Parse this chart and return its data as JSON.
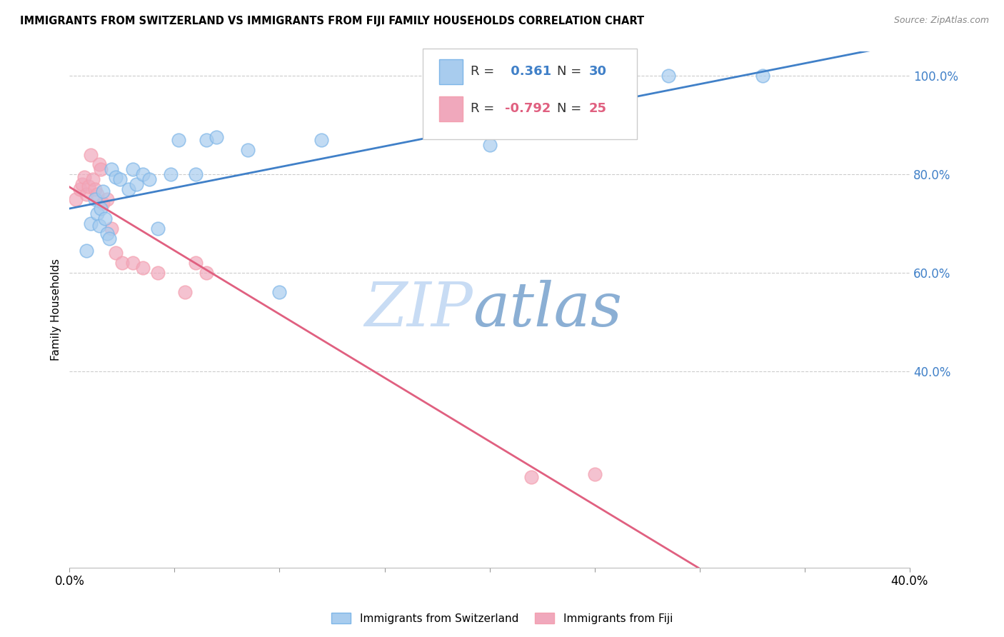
{
  "title": "IMMIGRANTS FROM SWITZERLAND VS IMMIGRANTS FROM FIJI FAMILY HOUSEHOLDS CORRELATION CHART",
  "source": "Source: ZipAtlas.com",
  "ylabel": "Family Households",
  "xlim": [
    0.0,
    0.4
  ],
  "ylim": [
    0.0,
    1.05
  ],
  "legend_color1": "#7EB6E8",
  "legend_color2": "#F4A0B0",
  "regression_line1_color": "#4080C8",
  "regression_line2_color": "#E06080",
  "scatter_color1": "#A8CCEE",
  "scatter_color2": "#F0A8BC",
  "watermark_zip": "ZIP",
  "watermark_atlas": "atlas",
  "watermark_color_zip": "#C8DCF0",
  "watermark_color_atlas": "#8BAFD4",
  "swiss_x": [
    0.008,
    0.01,
    0.012,
    0.013,
    0.014,
    0.015,
    0.016,
    0.017,
    0.018,
    0.019,
    0.02,
    0.022,
    0.024,
    0.028,
    0.03,
    0.032,
    0.035,
    0.038,
    0.042,
    0.048,
    0.052,
    0.06,
    0.065,
    0.07,
    0.085,
    0.1,
    0.12,
    0.2,
    0.285,
    0.33
  ],
  "swiss_y": [
    0.645,
    0.7,
    0.75,
    0.72,
    0.695,
    0.73,
    0.765,
    0.71,
    0.68,
    0.67,
    0.81,
    0.795,
    0.79,
    0.77,
    0.81,
    0.78,
    0.8,
    0.79,
    0.69,
    0.8,
    0.87,
    0.8,
    0.87,
    0.875,
    0.85,
    0.56,
    0.87,
    0.86,
    1.0,
    1.0
  ],
  "fiji_x": [
    0.003,
    0.005,
    0.006,
    0.007,
    0.008,
    0.009,
    0.01,
    0.011,
    0.012,
    0.013,
    0.014,
    0.015,
    0.016,
    0.018,
    0.02,
    0.022,
    0.025,
    0.03,
    0.035,
    0.042,
    0.055,
    0.06,
    0.065,
    0.22,
    0.25
  ],
  "fiji_y": [
    0.75,
    0.77,
    0.78,
    0.795,
    0.76,
    0.775,
    0.84,
    0.79,
    0.77,
    0.76,
    0.82,
    0.81,
    0.74,
    0.75,
    0.69,
    0.64,
    0.62,
    0.62,
    0.61,
    0.6,
    0.56,
    0.62,
    0.6,
    0.185,
    0.19
  ],
  "bottom_legend_label1": "Immigrants from Switzerland",
  "bottom_legend_label2": "Immigrants from Fiji"
}
